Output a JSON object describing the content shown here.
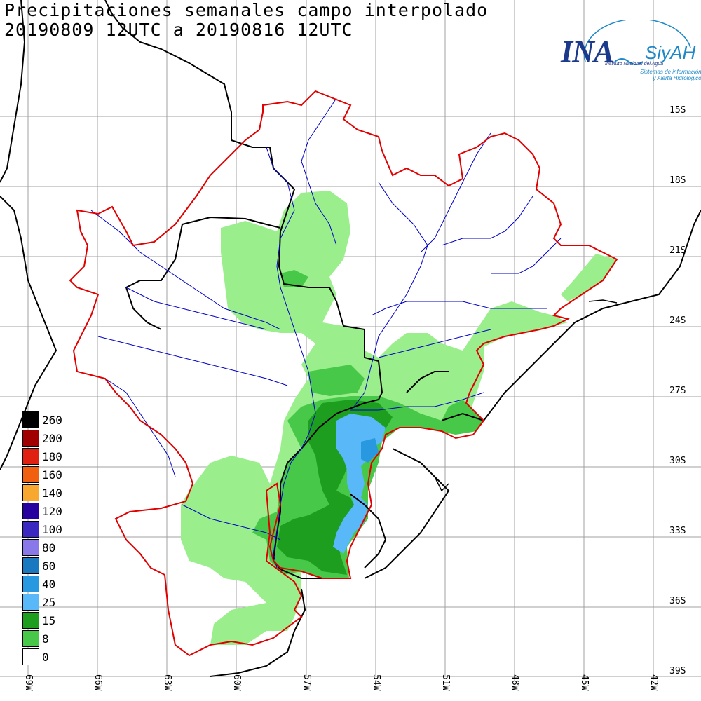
{
  "title_line1": "Precipitaciones semanales campo interpolado",
  "title_line2": "20190809 12UTC a 20190816 12UTC",
  "logo": {
    "brand": "INA",
    "system": "SiyAH",
    "institution": "Instituto Nacional del Agua",
    "tagline_1": "Sistemas de información",
    "tagline_2": "y Alerta Hidrológico"
  },
  "lat_labels": [
    "15S",
    "18S",
    "21S",
    "24S",
    "27S",
    "30S",
    "33S",
    "36S",
    "39S"
  ],
  "lon_labels": [
    "69W",
    "66W",
    "63W",
    "60W",
    "57W",
    "54W",
    "51W",
    "48W",
    "45W",
    "42W"
  ],
  "legend": [
    {
      "label": "260",
      "color": "#000000"
    },
    {
      "label": "200",
      "color": "#a00000"
    },
    {
      "label": "180",
      "color": "#e02010"
    },
    {
      "label": "160",
      "color": "#f06010"
    },
    {
      "label": "140",
      "color": "#f8a830"
    },
    {
      "label": "120",
      "color": "#2800a0"
    },
    {
      "label": "100",
      "color": "#3a28c0"
    },
    {
      "label": "80",
      "color": "#8878e8"
    },
    {
      "label": "60",
      "color": "#1878c0"
    },
    {
      "label": "40",
      "color": "#2898e0"
    },
    {
      "label": "25",
      "color": "#58b8f8"
    },
    {
      "label": "15",
      "color": "#1e9e1e"
    },
    {
      "label": "8",
      "color": "#48c848"
    },
    {
      "label": "0",
      "color": "#ffffff"
    }
  ],
  "colors": {
    "light_green": "#9aef8c",
    "mid_green": "#48c848",
    "dark_green": "#1e9e1e",
    "light_blue": "#58b8f8",
    "steel_blue": "#2898e0",
    "basin_outline": "#e00000",
    "rivers": "#0000c8",
    "borders": "#000000",
    "grid": "#a0a0a0"
  }
}
